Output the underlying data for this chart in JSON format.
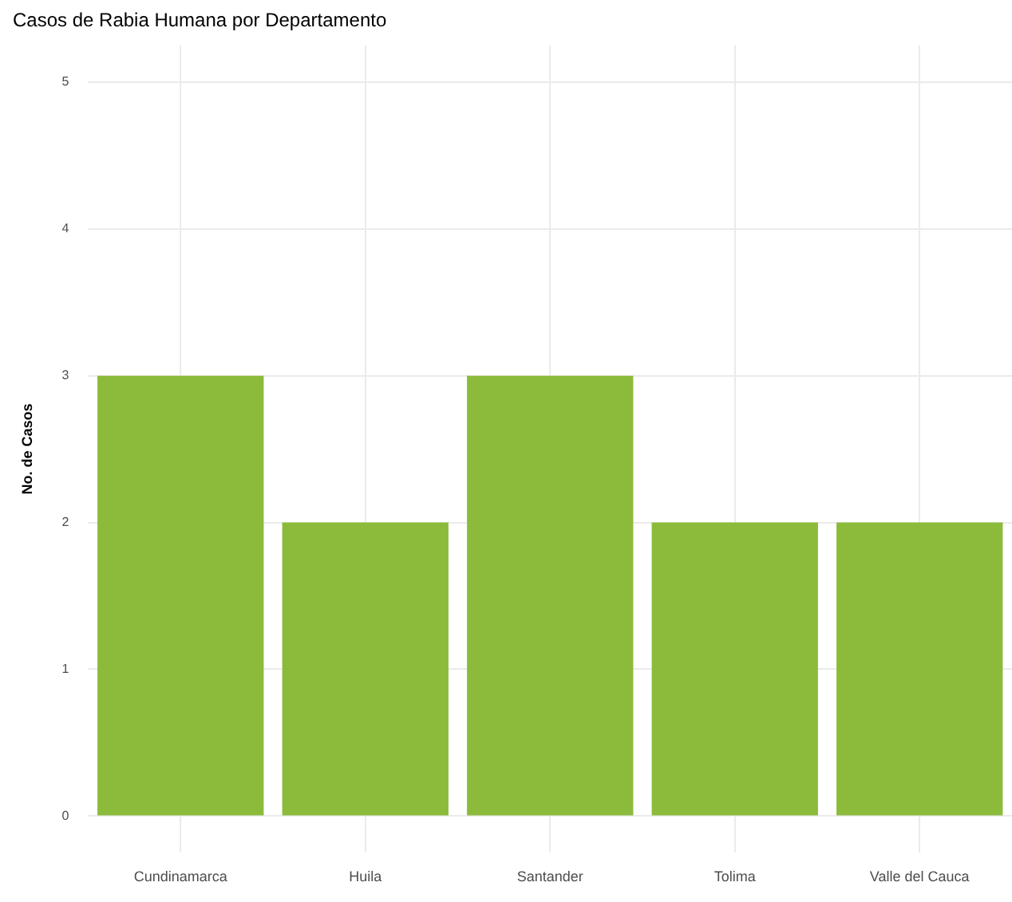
{
  "chart_data": {
    "type": "bar",
    "title": "Casos de Rabia Humana por Departamento",
    "ylabel": "No. de Casos",
    "categories": [
      "Cundinamarca",
      "Huila",
      "Santander",
      "Tolima",
      "Valle del Cauca"
    ],
    "values": [
      3,
      2,
      3,
      2,
      2
    ],
    "color": "#8cbb3c",
    "ylim": [
      -0.25,
      5.25
    ],
    "yticks": [
      0,
      1,
      2,
      3,
      4,
      5
    ],
    "grid": true
  }
}
